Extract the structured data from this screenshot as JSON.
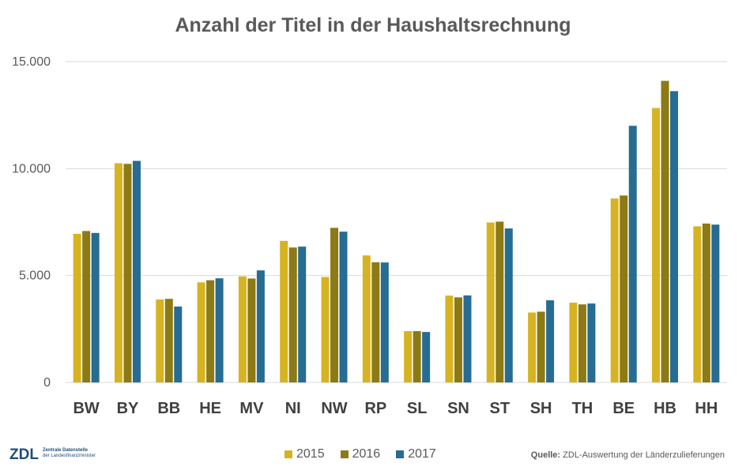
{
  "chart_data": {
    "type": "bar",
    "title": "Anzahl der Titel in der Haushaltsrechnung",
    "categories": [
      "BW",
      "BY",
      "BB",
      "HE",
      "MV",
      "NI",
      "NW",
      "RP",
      "SL",
      "SN",
      "ST",
      "SH",
      "TH",
      "BE",
      "HB",
      "HH"
    ],
    "series": [
      {
        "name": "2015",
        "color": "#D6B321",
        "values": [
          6950,
          10250,
          3880,
          4680,
          4960,
          6620,
          4930,
          5940,
          2400,
          4060,
          7480,
          3270,
          3730,
          8600,
          12830,
          7300
        ]
      },
      {
        "name": "2016",
        "color": "#8C7A14",
        "values": [
          7080,
          10220,
          3910,
          4780,
          4860,
          6310,
          7230,
          5620,
          2400,
          3980,
          7520,
          3310,
          3650,
          8740,
          14100,
          7430
        ]
      },
      {
        "name": "2017",
        "color": "#266C93",
        "values": [
          6990,
          10360,
          3550,
          4870,
          5240,
          6350,
          7050,
          5610,
          2360,
          4070,
          7200,
          3840,
          3690,
          12000,
          13620,
          7380
        ]
      }
    ],
    "ylim": [
      0,
      15000
    ],
    "yticks": [
      0,
      5000,
      10000,
      15000
    ],
    "ytick_labels": [
      "0",
      "5.000",
      "10.000",
      "15.000"
    ],
    "grid": true,
    "legend_position": "bottom"
  },
  "logo": {
    "mark": "ZDL",
    "line1": "Zentrale Datenstelle",
    "line2": "der Landesfinanzminister"
  },
  "source": {
    "label": "Quelle:",
    "text": " ZDL-Auswertung der Länderzulieferungen"
  }
}
